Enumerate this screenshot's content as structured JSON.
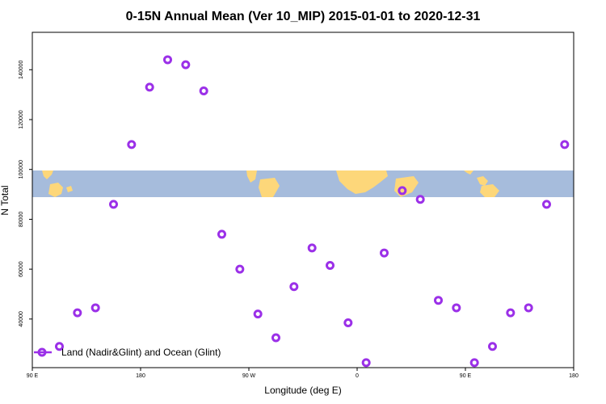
{
  "chart_data": {
    "type": "scatter",
    "title": "0-15N Annual Mean (Ver 10_MIP)   2015-01-01 to 2020-12-31",
    "xlabel": "Longitude (deg E)",
    "ylabel": "N Total",
    "x_ticks": [
      {
        "value": 90,
        "label": "90 E"
      },
      {
        "value": 180,
        "label": "180"
      },
      {
        "value": 270,
        "label": "90 W"
      },
      {
        "value": 360,
        "label": "0"
      },
      {
        "value": 450,
        "label": "90 E"
      },
      {
        "value": 540,
        "label": "180"
      }
    ],
    "y_ticks": [
      40000,
      60000,
      80000,
      100000,
      120000,
      140000
    ],
    "xlim": [
      90,
      540
    ],
    "ylim": [
      20500,
      155000
    ],
    "series": [
      {
        "name": "Land (Nadir&Glint) and Ocean (Glint)",
        "color": "#9b30e8",
        "points": [
          {
            "x": 112.5,
            "y": 29000
          },
          {
            "x": 127.5,
            "y": 42500
          },
          {
            "x": 142.5,
            "y": 44500
          },
          {
            "x": 157.5,
            "y": 86000
          },
          {
            "x": 172.5,
            "y": 110000
          },
          {
            "x": 187.5,
            "y": 133000
          },
          {
            "x": 202.5,
            "y": 144000
          },
          {
            "x": 217.5,
            "y": 142000
          },
          {
            "x": 232.5,
            "y": 131500
          },
          {
            "x": 247.5,
            "y": 74000
          },
          {
            "x": 262.5,
            "y": 60000
          },
          {
            "x": 277.5,
            "y": 42000
          },
          {
            "x": 292.5,
            "y": 32500
          },
          {
            "x": 307.5,
            "y": 53000
          },
          {
            "x": 322.5,
            "y": 68500
          },
          {
            "x": 337.5,
            "y": 61500
          },
          {
            "x": 352.5,
            "y": 38500
          },
          {
            "x": 367.5,
            "y": 22500
          },
          {
            "x": 382.5,
            "y": 66500
          },
          {
            "x": 397.5,
            "y": 91500
          },
          {
            "x": 412.5,
            "y": 88000
          },
          {
            "x": 427.5,
            "y": 47500
          },
          {
            "x": 442.5,
            "y": 44500
          },
          {
            "x": 457.5,
            "y": 22500
          },
          {
            "x": 472.5,
            "y": 29000
          },
          {
            "x": 487.5,
            "y": 42500
          },
          {
            "x": 502.5,
            "y": 44500
          },
          {
            "x": 517.5,
            "y": 86000
          },
          {
            "x": 532.5,
            "y": 110000
          }
        ]
      }
    ],
    "legend_position": "bottom-left",
    "map_band": {
      "ocean_color": "#a6bcdc",
      "land_color": "#fdd77a"
    }
  }
}
